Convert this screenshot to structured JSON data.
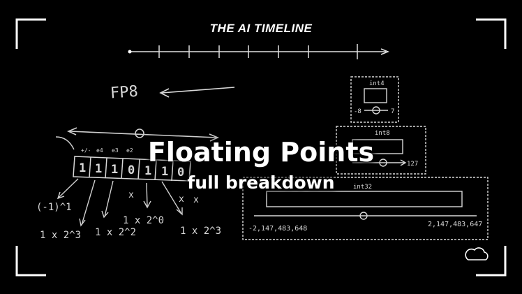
{
  "header": {
    "series_title": "THE AI TIMELINE"
  },
  "title": {
    "main": "Floating Points",
    "subtitle": "full breakdown"
  },
  "sketch": {
    "fp8_label": "FP8",
    "sign_label": "+/-",
    "exp_labels": [
      "e4",
      "e3",
      "e2"
    ],
    "bits": [
      "1",
      "1",
      "1",
      "0",
      "1",
      "1",
      "0"
    ],
    "terms": [
      "(-1)^1",
      "1 x 2^3",
      "1 x 2^2",
      "1 x 2^0",
      "1 x 2^3"
    ],
    "x_marks": [
      "x",
      "x",
      "x"
    ]
  },
  "int_ranges": [
    {
      "name": "int4",
      "min": "-8",
      "max": "7"
    },
    {
      "name": "int8",
      "min": "",
      "max": "127"
    },
    {
      "name": "int32",
      "min": "-2,147,483,648",
      "max": "2,147,483,647"
    }
  ],
  "colors": {
    "background": "#000000",
    "chalk": "#d8d8d8",
    "text": "#ffffff"
  },
  "icons": {
    "corner_icon": "cloud-icon"
  }
}
